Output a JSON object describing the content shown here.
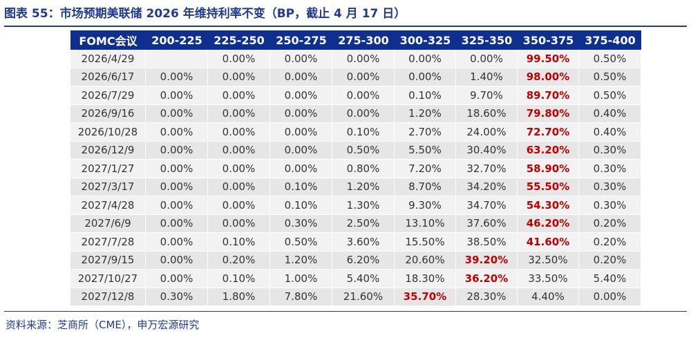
{
  "title": "图表 55：市场预期美联储 2026 年维持利率不变（BP，截止 4 月 17 日）",
  "source": "资料来源：芝商所（CME），申万宏源研究",
  "chart_data": {
    "type": "table",
    "columns": [
      "FOMC会议",
      "200-225",
      "225-250",
      "250-275",
      "275-300",
      "300-325",
      "325-350",
      "350-375",
      "375-400"
    ],
    "rows": [
      {
        "date": "2026/4/29",
        "cells": [
          "",
          "0.00%",
          "0.00%",
          "0.00%",
          "0.00%",
          "0.00%",
          "99.50%",
          "0.50%"
        ],
        "max_col": 6
      },
      {
        "date": "2026/6/17",
        "cells": [
          "0.00%",
          "0.00%",
          "0.00%",
          "0.00%",
          "0.00%",
          "1.40%",
          "98.00%",
          "0.50%"
        ],
        "max_col": 6
      },
      {
        "date": "2026/7/29",
        "cells": [
          "0.00%",
          "0.00%",
          "0.00%",
          "0.00%",
          "0.10%",
          "9.70%",
          "89.70%",
          "0.50%"
        ],
        "max_col": 6
      },
      {
        "date": "2026/9/16",
        "cells": [
          "0.00%",
          "0.00%",
          "0.00%",
          "0.00%",
          "1.20%",
          "18.60%",
          "79.80%",
          "0.40%"
        ],
        "max_col": 6
      },
      {
        "date": "2026/10/28",
        "cells": [
          "0.00%",
          "0.00%",
          "0.00%",
          "0.10%",
          "2.70%",
          "24.00%",
          "72.70%",
          "0.40%"
        ],
        "max_col": 6
      },
      {
        "date": "2026/12/9",
        "cells": [
          "0.00%",
          "0.00%",
          "0.00%",
          "0.50%",
          "5.50%",
          "30.40%",
          "63.20%",
          "0.30%"
        ],
        "max_col": 6
      },
      {
        "date": "2027/1/27",
        "cells": [
          "0.00%",
          "0.00%",
          "0.00%",
          "0.80%",
          "7.20%",
          "32.70%",
          "58.90%",
          "0.30%"
        ],
        "max_col": 6
      },
      {
        "date": "2027/3/17",
        "cells": [
          "0.00%",
          "0.00%",
          "0.10%",
          "1.20%",
          "8.70%",
          "34.20%",
          "55.50%",
          "0.30%"
        ],
        "max_col": 6
      },
      {
        "date": "2027/4/28",
        "cells": [
          "0.00%",
          "0.00%",
          "0.10%",
          "1.30%",
          "9.30%",
          "34.70%",
          "54.30%",
          "0.30%"
        ],
        "max_col": 6
      },
      {
        "date": "2027/6/9",
        "cells": [
          "0.00%",
          "0.00%",
          "0.30%",
          "2.50%",
          "13.10%",
          "37.60%",
          "46.20%",
          "0.20%"
        ],
        "max_col": 6
      },
      {
        "date": "2027/7/28",
        "cells": [
          "0.00%",
          "0.10%",
          "0.50%",
          "3.60%",
          "15.50%",
          "38.50%",
          "41.60%",
          "0.20%"
        ],
        "max_col": 6
      },
      {
        "date": "2027/9/15",
        "cells": [
          "0.00%",
          "0.20%",
          "1.20%",
          "6.20%",
          "20.60%",
          "39.20%",
          "32.50%",
          "0.20%"
        ],
        "max_col": 5
      },
      {
        "date": "2027/10/27",
        "cells": [
          "0.00%",
          "0.10%",
          "1.00%",
          "5.40%",
          "18.30%",
          "36.20%",
          "33.50%",
          "5.40%"
        ],
        "max_col": 5
      },
      {
        "date": "2027/12/8",
        "cells": [
          "0.30%",
          "1.80%",
          "7.80%",
          "21.60%",
          "35.70%",
          "28.30%",
          "4.40%",
          "0.00%"
        ],
        "max_col": 4
      }
    ]
  },
  "colors": {
    "title": "#1f3a8f",
    "header_bg": "#0f2f8f",
    "highlight": "#c00000"
  }
}
